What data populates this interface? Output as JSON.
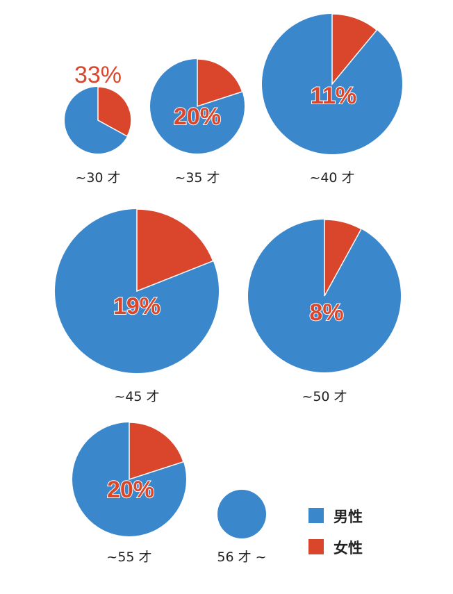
{
  "chart_data": {
    "type": "pie",
    "colors": {
      "male": "#3a87cc",
      "female": "#d9462c"
    },
    "legend": [
      {
        "key": "male",
        "label": "男性"
      },
      {
        "key": "female",
        "label": "女性"
      }
    ],
    "groups": [
      {
        "age": "~30 才",
        "female_percent": 33,
        "label": "33%",
        "label_placement": "outside"
      },
      {
        "age": "~35 才",
        "female_percent": 20,
        "label": "20%",
        "label_placement": "inside"
      },
      {
        "age": "~40 才",
        "female_percent": 11,
        "label": "11%",
        "label_placement": "inside"
      },
      {
        "age": "~45 才",
        "female_percent": 19,
        "label": "19%",
        "label_placement": "inside"
      },
      {
        "age": "~50 才",
        "female_percent": 8,
        "label": "8%",
        "label_placement": "inside"
      },
      {
        "age": "~55 才",
        "female_percent": 20,
        "label": "20%",
        "label_placement": "inside"
      },
      {
        "age": "56 才 ~",
        "female_percent": 0,
        "label": "",
        "label_placement": "none"
      }
    ]
  }
}
